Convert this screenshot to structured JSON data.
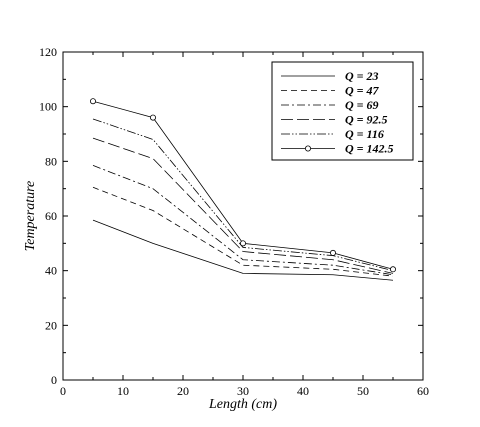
{
  "chart_data": {
    "type": "line",
    "title": "",
    "xlabel": "Length (cm)",
    "ylabel": "Temperature",
    "xlim": [
      0,
      60
    ],
    "ylim": [
      0,
      120
    ],
    "xticks": [
      0,
      10,
      20,
      30,
      40,
      50,
      60
    ],
    "yticks": [
      0,
      20,
      40,
      60,
      80,
      100,
      120
    ],
    "grid": false,
    "legend_position": "top-right",
    "x": [
      5,
      15,
      30,
      45,
      55
    ],
    "series": [
      {
        "name": "Q = 23",
        "values": [
          58.5,
          50,
          39,
          38.5,
          36.5
        ],
        "dash": "solid"
      },
      {
        "name": "Q = 47",
        "values": [
          70.5,
          62,
          42,
          40.5,
          38
        ],
        "dash": "dash"
      },
      {
        "name": "Q = 69",
        "values": [
          78.5,
          70,
          44,
          42,
          38.5
        ],
        "dash": "dashdot"
      },
      {
        "name": "Q = 92.5",
        "values": [
          88.5,
          81,
          47,
          44,
          39
        ],
        "dash": "longdash"
      },
      {
        "name": "Q = 116",
        "values": [
          95.5,
          88,
          48.5,
          45.5,
          40
        ],
        "dash": "dashdotdot"
      },
      {
        "name": "Q = 142.5",
        "values": [
          102,
          96,
          50,
          46.5,
          40.5
        ],
        "dash": "solid",
        "marker": "circle"
      }
    ]
  }
}
